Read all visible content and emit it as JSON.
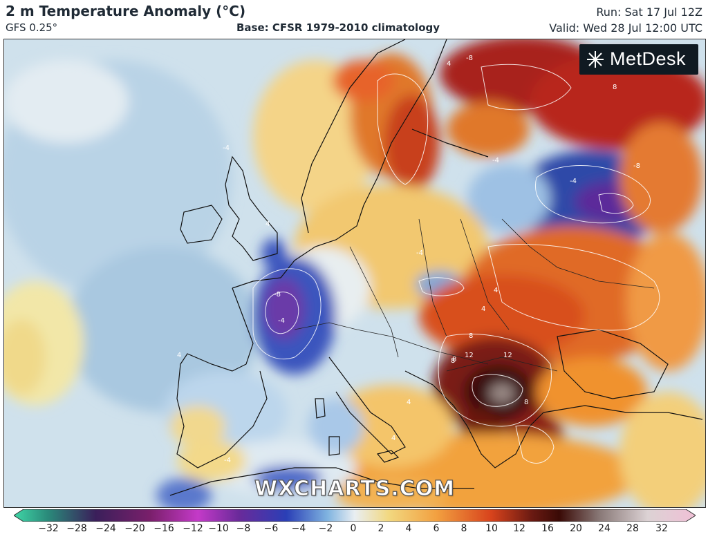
{
  "header": {
    "title": "2 m Temperature Anomaly (°C)",
    "model": "GFS 0.25°",
    "base": "Base: CFSR 1979-2010 climatology",
    "run": "Run: Sat 17 Jul 12Z",
    "valid": "Valid: Wed 28 Jul 12:00 UTC"
  },
  "brand": {
    "logo_text": "MetDesk",
    "watermark": "WXCHARTS.COM"
  },
  "map": {
    "region": "Europe",
    "contour_labels": [
      "4",
      "-4",
      "-4",
      "-8",
      "-4",
      "4",
      "-4",
      "-8",
      "-4",
      "4",
      "4",
      "8",
      "8",
      "12",
      "12",
      "8",
      "8",
      "4",
      "8",
      "4",
      "-4",
      "4",
      "-8"
    ]
  },
  "colorbar": {
    "ticks": [
      "−32",
      "−28",
      "−24",
      "−20",
      "−16",
      "−12",
      "−10",
      "−8",
      "−6",
      "−4",
      "−2",
      "0",
      "2",
      "4",
      "6",
      "8",
      "10",
      "12",
      "16",
      "20",
      "24",
      "28",
      "32"
    ],
    "colors": {
      "min": "#3fd6a6",
      "cold_deep": "#5a1f6b",
      "cold_purple": "#b234c8",
      "cold_blue": "#2a3fb6",
      "cool": "#7fb3e0",
      "neutral": "#e9eef2",
      "warm_light": "#f2d880",
      "warm": "#f2a040",
      "hot": "#d8431c",
      "very_hot": "#6a1a12",
      "extreme": "#f0c0d6"
    }
  }
}
